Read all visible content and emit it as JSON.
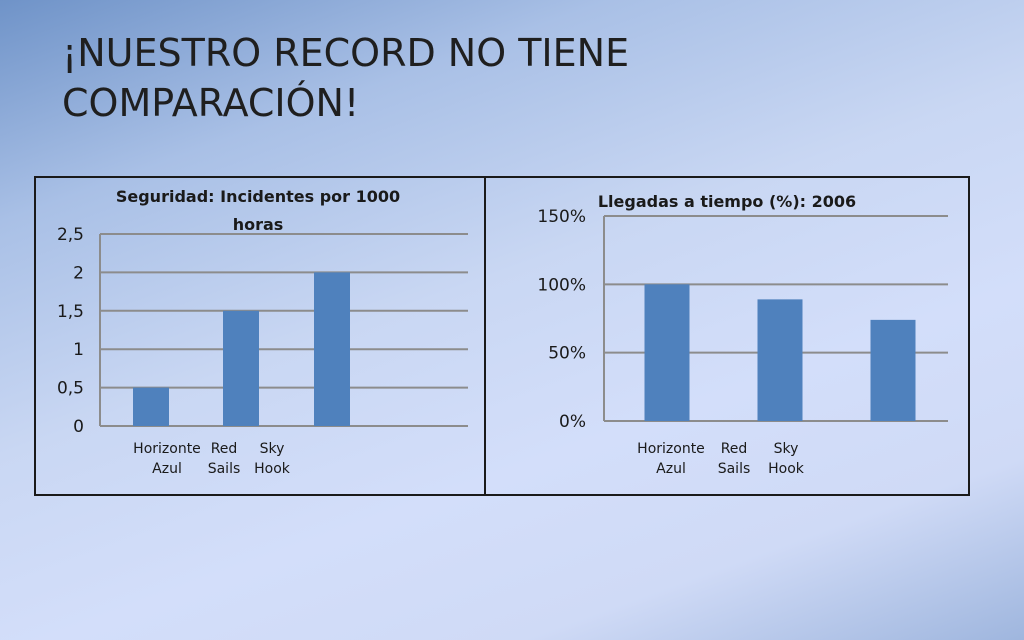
{
  "title": "¡NUESTRO RECORD NO TIENE COMPARACIÓN!",
  "colors": {
    "bar": "#4f81bd",
    "grid": "#8c8c8c"
  },
  "chart_data": [
    {
      "type": "bar",
      "title": "Seguridad: Incidentes por 1000 horas",
      "categories": [
        "Horizonte Azul",
        "Red Sails",
        "Sky Hook"
      ],
      "values": [
        0.5,
        1.5,
        2
      ],
      "ylim": [
        0,
        2.5
      ],
      "yticks": [
        "0",
        "0,5",
        "1",
        "1,5",
        "2",
        "2,5"
      ],
      "grid": true,
      "legend": "none"
    },
    {
      "type": "bar",
      "title": "Llegadas a tiempo (%): 2006",
      "categories": [
        "Horizonte Azul",
        "Red Sails",
        "Sky Hook"
      ],
      "values": [
        100,
        89,
        74
      ],
      "ylim": [
        0,
        150
      ],
      "yticks": [
        "0%",
        "50%",
        "100%",
        "150%"
      ],
      "grid": true,
      "legend": "none"
    }
  ]
}
